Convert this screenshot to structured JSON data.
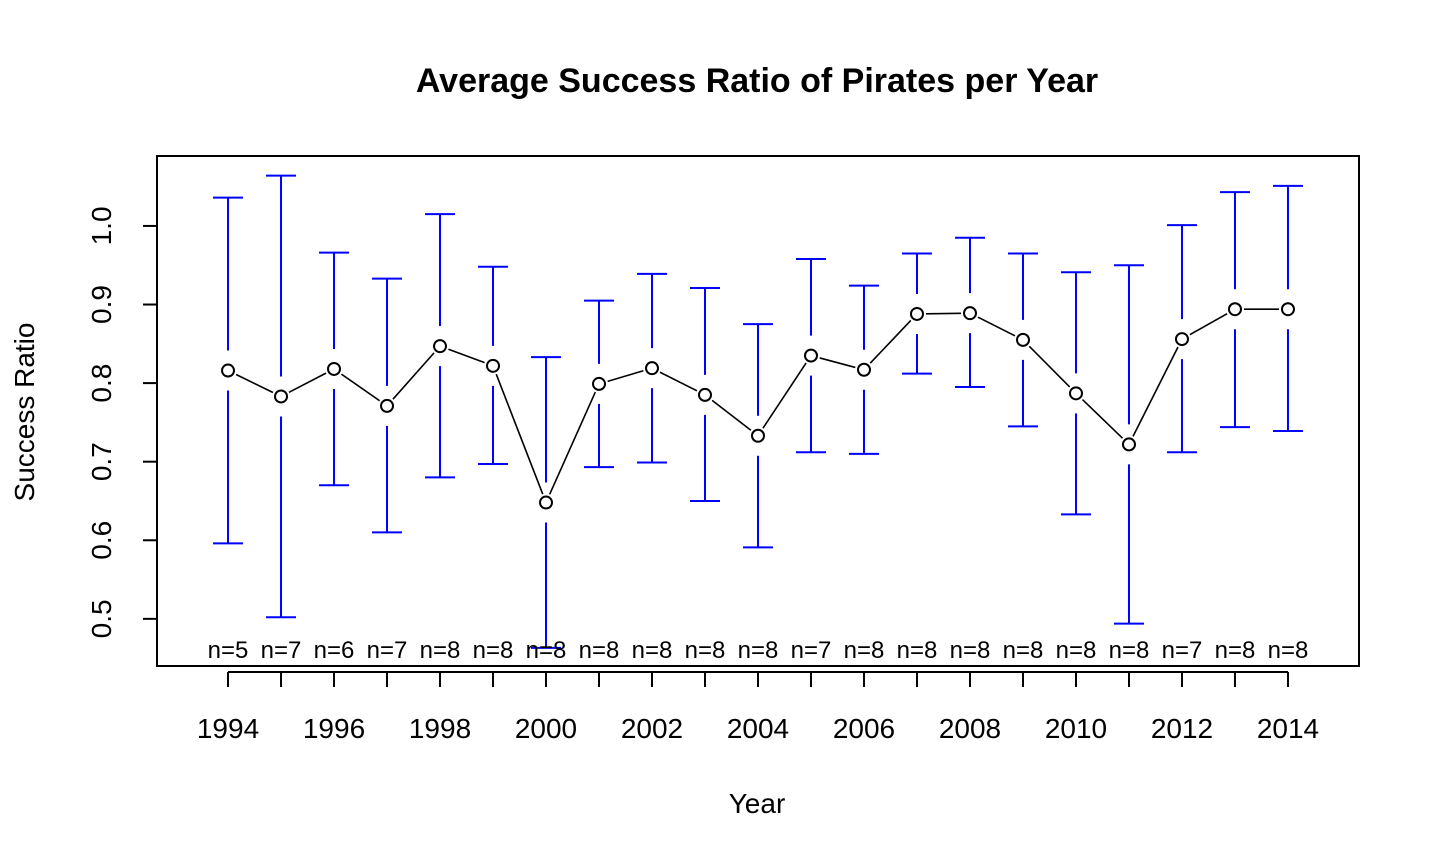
{
  "chart_data": {
    "type": "line",
    "title": "Average Success Ratio of Pirates per Year",
    "xlabel": "Year",
    "ylabel": "Success Ratio",
    "x": [
      1994,
      1995,
      1996,
      1997,
      1998,
      1999,
      2000,
      2001,
      2002,
      2003,
      2004,
      2005,
      2006,
      2007,
      2008,
      2009,
      2010,
      2011,
      2012,
      2013,
      2014
    ],
    "series": [
      {
        "values": [
          0.816,
          0.783,
          0.818,
          0.771,
          0.847,
          0.822,
          0.648,
          0.799,
          0.819,
          0.785,
          0.733,
          0.835,
          0.817,
          0.888,
          0.889,
          0.855,
          0.787,
          0.722,
          0.856,
          0.894,
          0.894
        ],
        "color": "#000000",
        "marker": "open-circle"
      }
    ],
    "error_bars": {
      "color": "#0000ff",
      "lower": [
        0.596,
        0.502,
        0.67,
        0.61,
        0.68,
        0.697,
        0.463,
        0.693,
        0.699,
        0.65,
        0.591,
        0.712,
        0.71,
        0.812,
        0.795,
        0.745,
        0.633,
        0.494,
        0.712,
        0.744,
        0.739
      ],
      "upper": [
        1.036,
        1.064,
        0.966,
        0.933,
        1.015,
        0.948,
        0.833,
        0.905,
        0.939,
        0.921,
        0.875,
        0.958,
        0.924,
        0.965,
        0.985,
        0.965,
        0.941,
        0.95,
        1.001,
        1.043,
        1.051
      ]
    },
    "n_labels": [
      "n=5",
      "n=7",
      "n=6",
      "n=7",
      "n=8",
      "n=8",
      "n=8",
      "n=8",
      "n=8",
      "n=8",
      "n=8",
      "n=7",
      "n=8",
      "n=8",
      "n=8",
      "n=8",
      "n=8",
      "n=8",
      "n=7",
      "n=8",
      "n=8"
    ],
    "x_ticks": [
      1994,
      1996,
      1998,
      2000,
      2002,
      2004,
      2006,
      2008,
      2010,
      2012,
      2014
    ],
    "y_ticks": [
      "0.5",
      "0.6",
      "0.7",
      "0.8",
      "0.9",
      "1.0"
    ],
    "xlim": [
      1992.66,
      2015.34
    ],
    "ylim": [
      0.44,
      1.089
    ],
    "grid": false,
    "legend": "none"
  }
}
